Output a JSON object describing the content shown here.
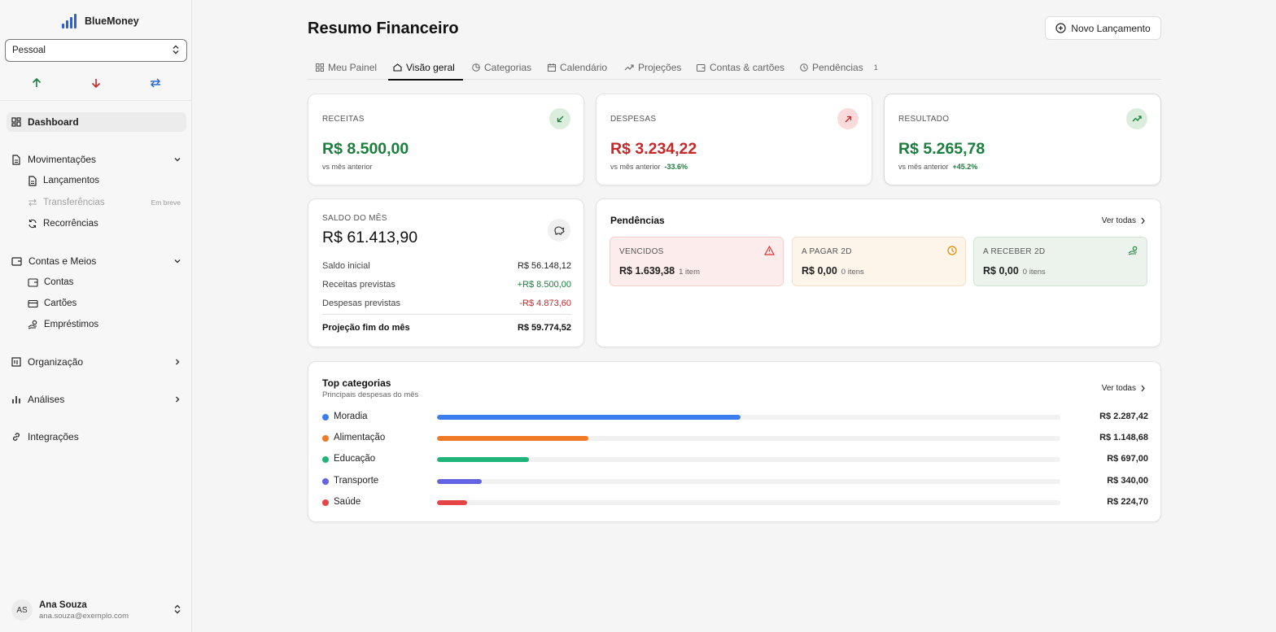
{
  "app": {
    "name": "BlueMoney",
    "workspace": "Pessoal"
  },
  "sidebar": {
    "dashboard": "Dashboard",
    "movimentacoes": {
      "label": "Movimentações",
      "items": [
        {
          "label": "Lançamentos"
        },
        {
          "label": "Transferências",
          "badge": "Em breve"
        },
        {
          "label": "Recorrências"
        }
      ]
    },
    "contas": {
      "label": "Contas e Meios",
      "items": [
        {
          "label": "Contas"
        },
        {
          "label": "Cartões"
        },
        {
          "label": "Empréstimos"
        }
      ]
    },
    "organizacao": "Organização",
    "analises": "Análises",
    "integracoes": "Integrações"
  },
  "user": {
    "initials": "AS",
    "name": "Ana Souza",
    "email": "ana.souza@exemplo.com"
  },
  "header": {
    "title": "Resumo Financeiro",
    "new_button": "Novo Lançamento"
  },
  "tabs": [
    {
      "label": "Meu Painel",
      "icon": "grid-icon"
    },
    {
      "label": "Visão geral",
      "icon": "home-icon"
    },
    {
      "label": "Categorias",
      "icon": "pie-icon"
    },
    {
      "label": "Calendário",
      "icon": "calendar-icon"
    },
    {
      "label": "Projeções",
      "icon": "trend-icon"
    },
    {
      "label": "Contas & cartões",
      "icon": "wallet-icon"
    },
    {
      "label": "Pendências",
      "icon": "clock-icon",
      "badge": "1"
    }
  ],
  "kpis": {
    "receitas": {
      "label": "RECEITAS",
      "value": "R$ 8.500,00",
      "sub": "vs mês anterior",
      "change": ""
    },
    "despesas": {
      "label": "DESPESAS",
      "value": "R$ 3.234,22",
      "sub": "vs mês anterior",
      "change": "-33.6%"
    },
    "resultado": {
      "label": "RESULTADO",
      "value": "R$ 5.265,78",
      "sub": "vs mês anterior",
      "change": "+45.2%"
    }
  },
  "saldo": {
    "label": "SALDO DO MÊS",
    "value": "R$ 61.413,90",
    "rows": [
      {
        "label": "Saldo inicial",
        "value": "R$ 56.148,12"
      },
      {
        "label": "Receitas previstas",
        "value": "+R$ 8.500,00"
      },
      {
        "label": "Despesas previstas",
        "value": "-R$ 4.873,60"
      }
    ],
    "total": {
      "label": "Projeção fim do mês",
      "value": "R$ 59.774,52"
    }
  },
  "pendencias": {
    "title": "Pendências",
    "ver_todas": "Ver todas",
    "boxes": [
      {
        "label": "VENCIDOS",
        "value": "R$ 1.639,38",
        "count": "1 item"
      },
      {
        "label": "A PAGAR 2D",
        "value": "R$ 0,00",
        "count": "0 itens"
      },
      {
        "label": "A RECEBER 2D",
        "value": "R$ 0,00",
        "count": "0 itens"
      }
    ]
  },
  "top_categorias": {
    "title": "Top categorias",
    "subtitle": "Principais despesas do mês",
    "ver_todas": "Ver todas",
    "items": [
      {
        "name": "Moradia",
        "value": "R$ 2.287,42",
        "share": 0.487,
        "color": "#3b7ded"
      },
      {
        "name": "Alimentação",
        "value": "R$ 1.148,68",
        "share": 0.243,
        "color": "#f07a25"
      },
      {
        "name": "Educação",
        "value": "R$ 697,00",
        "share": 0.148,
        "color": "#1fb57a"
      },
      {
        "name": "Transporte",
        "value": "R$ 340,00",
        "share": 0.072,
        "color": "#6464e0"
      },
      {
        "name": "Saúde",
        "value": "R$ 224,70",
        "share": 0.048,
        "color": "#e64545"
      }
    ]
  },
  "colors": {
    "positive": "#1a7f3c",
    "negative": "#c62828",
    "brand": "#2f5fd0"
  }
}
